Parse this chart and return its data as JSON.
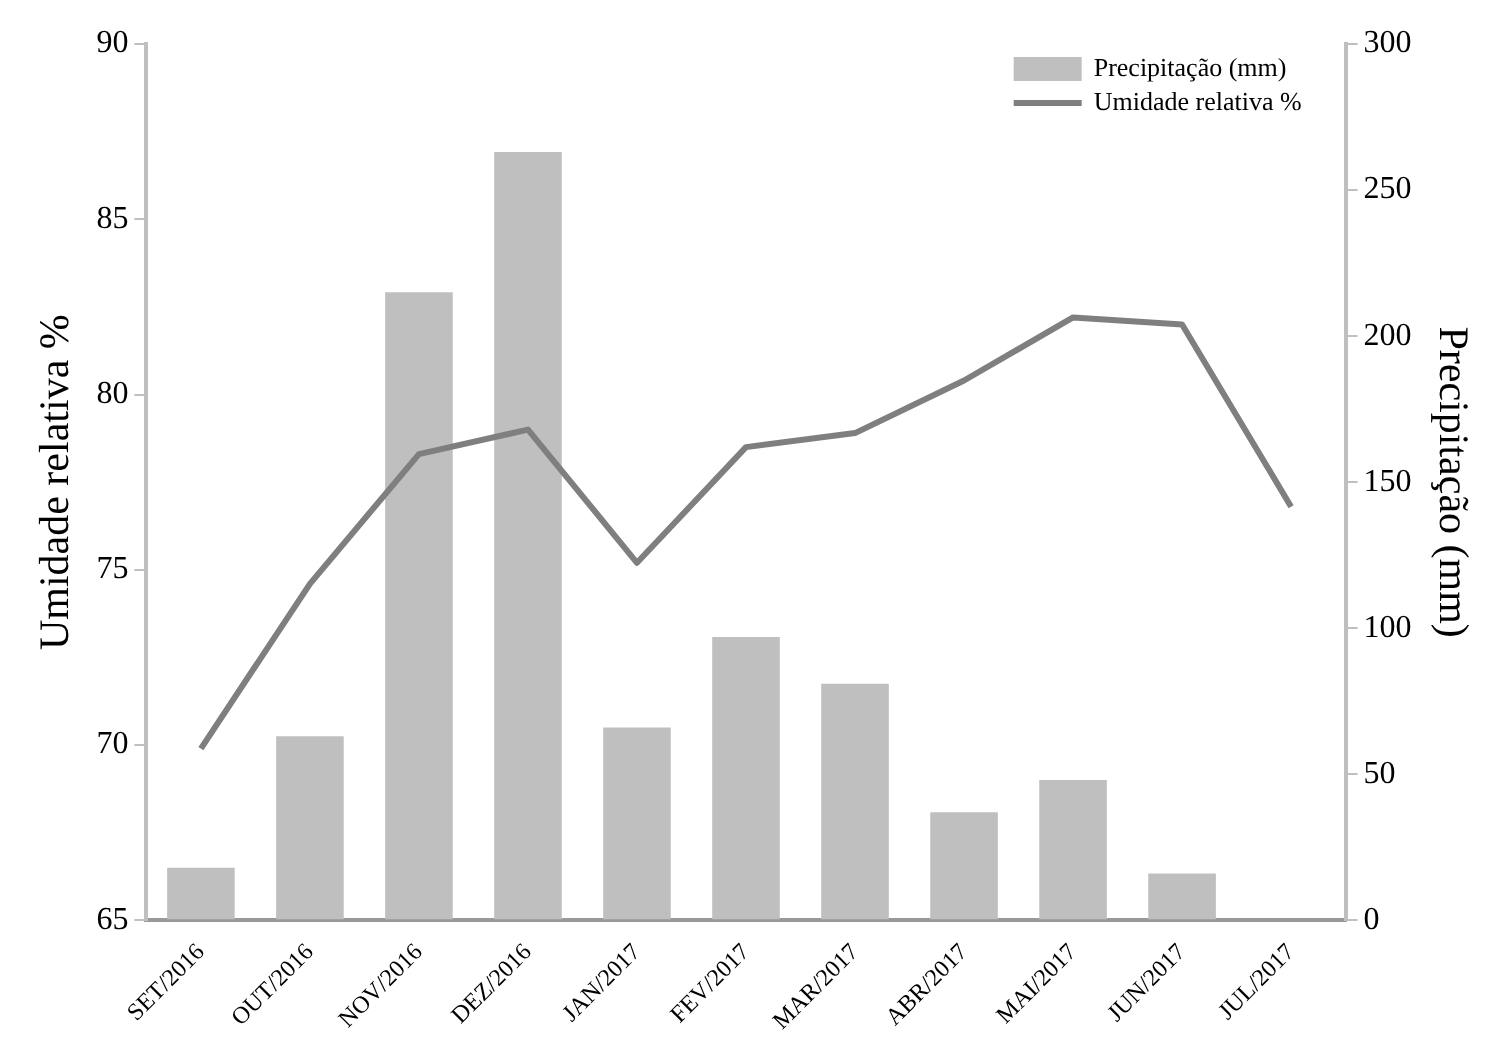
{
  "chart_data": {
    "type": "bar",
    "categories": [
      "SET/2016",
      "OUT/2016",
      "NOV/2016",
      "DEZ/2016",
      "JAN/2017",
      "FEV/2017",
      "MAR/2017",
      "ABR/2017",
      "MAI/2017",
      "JUN/2017",
      "JUL/2017"
    ],
    "series": [
      {
        "name": "Precipitação (mm)",
        "axis": "y2",
        "color": "#bfbfbf",
        "values": [
          18,
          63,
          215,
          263,
          66,
          97,
          81,
          37,
          48,
          16,
          0
        ]
      },
      {
        "name": "Umidade relativa %",
        "type": "line",
        "color": "#7f7f7f",
        "values": [
          69.9,
          74.6,
          78.3,
          79.0,
          75.2,
          78.5,
          78.9,
          80.4,
          82.2,
          82.0,
          76.8
        ]
      }
    ],
    "ylabel": "Umidade relativa %",
    "y2label": "Precipitação (mm)",
    "ylim": [
      65,
      90
    ],
    "yticks": [
      65,
      70,
      75,
      80,
      85,
      90
    ],
    "y2lim": [
      0,
      300
    ],
    "y2ticks": [
      0,
      50,
      100,
      150,
      200,
      250,
      300
    ],
    "grid": false,
    "legend": "top right",
    "marker": "none",
    "line_style": "solid"
  }
}
